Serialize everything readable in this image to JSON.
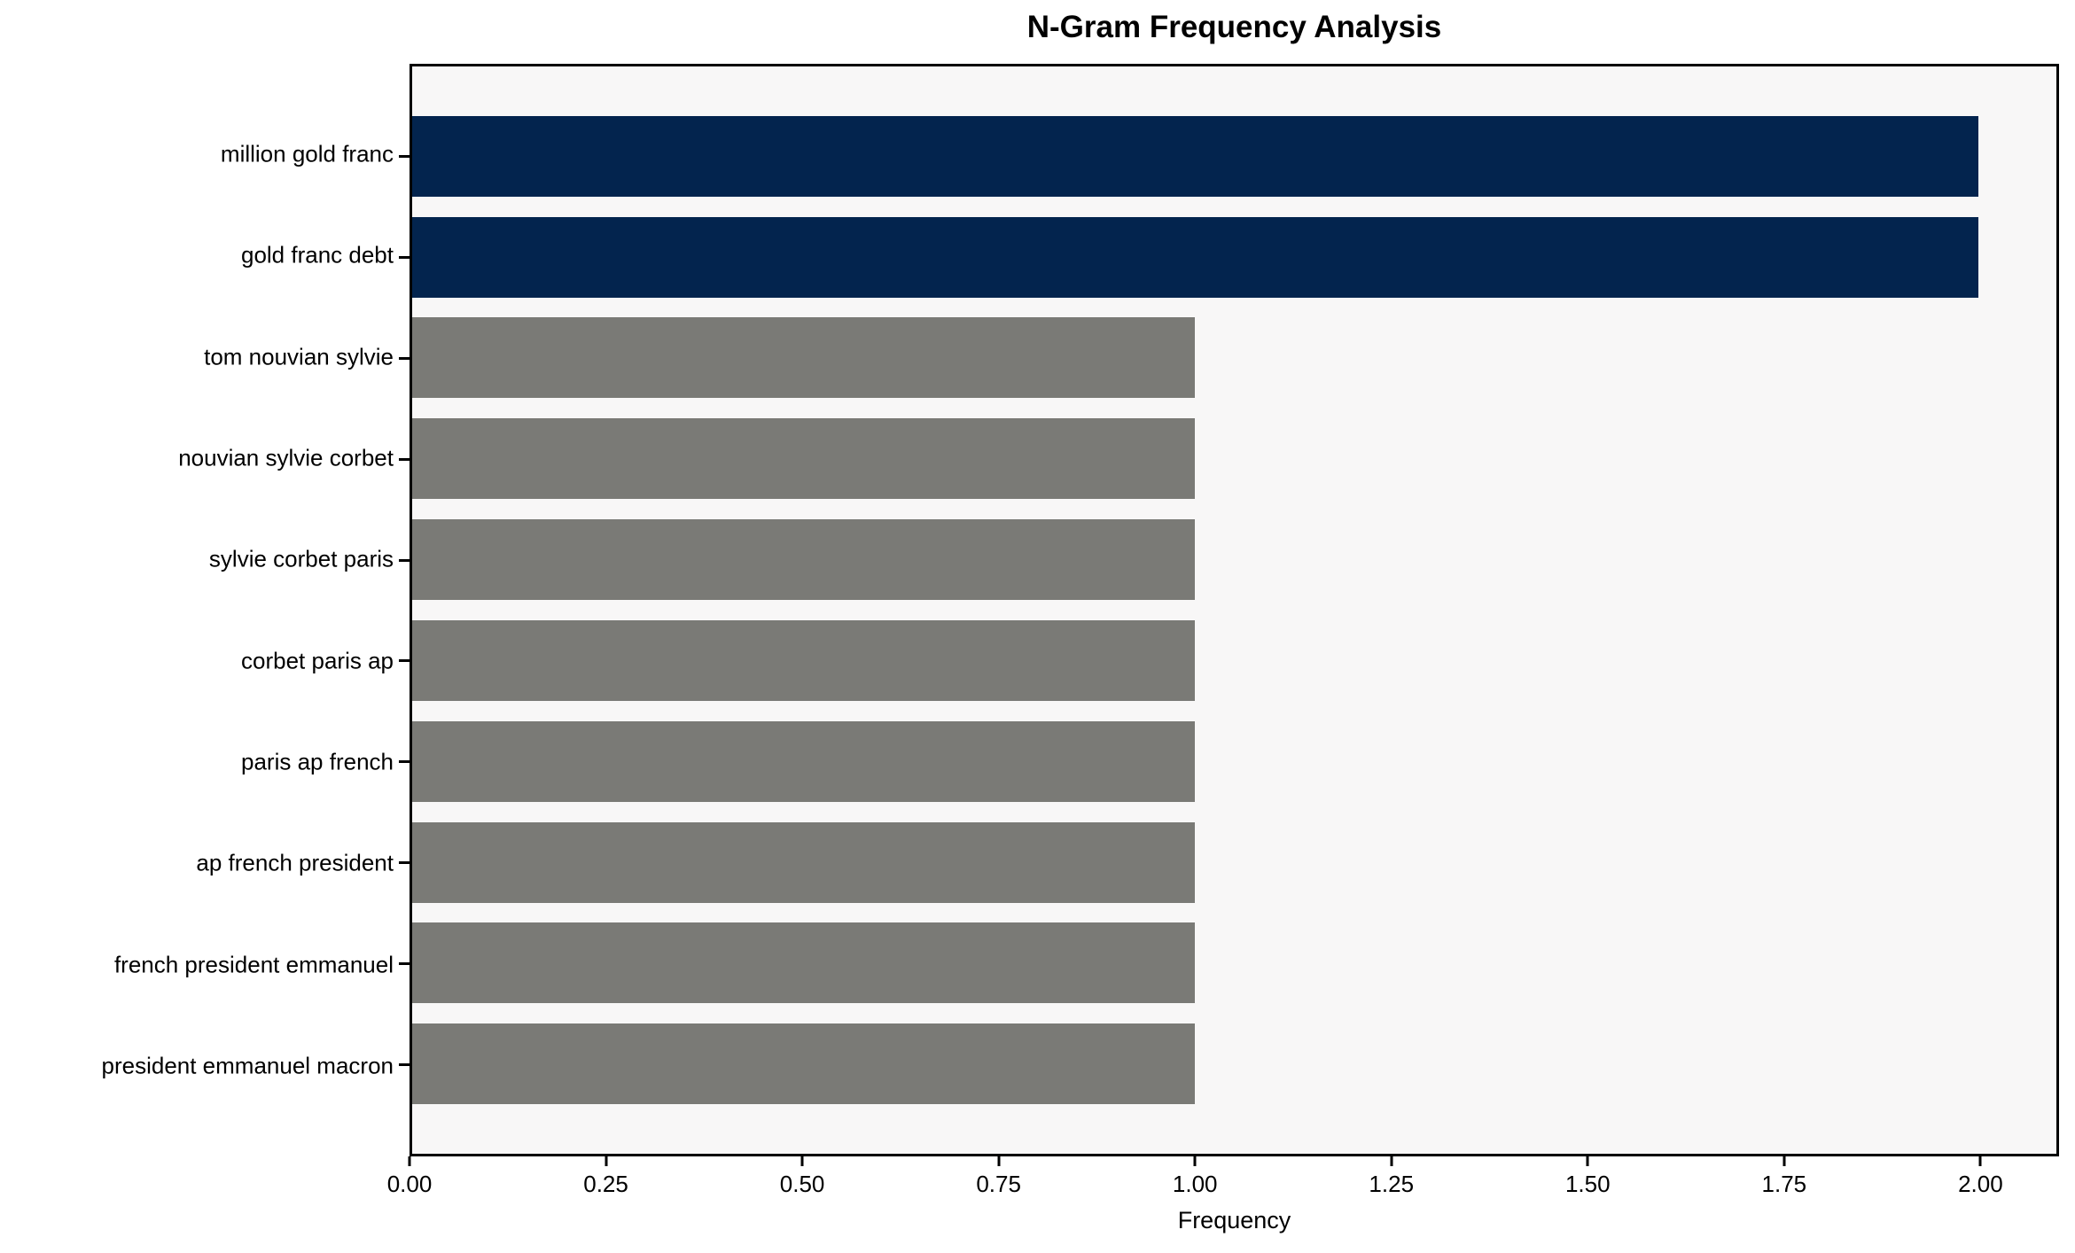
{
  "chart_data": {
    "type": "bar",
    "orientation": "horizontal",
    "title": "N-Gram Frequency Analysis",
    "xlabel": "Frequency",
    "ylabel": "",
    "categories": [
      "million gold franc",
      "gold franc debt",
      "tom nouvian sylvie",
      "nouvian sylvie corbet",
      "sylvie corbet paris",
      "corbet paris ap",
      "paris ap french",
      "ap french president",
      "french president emmanuel",
      "president emmanuel macron"
    ],
    "values": [
      2,
      2,
      1,
      1,
      1,
      1,
      1,
      1,
      1,
      1
    ],
    "bar_colors": [
      "#03244e",
      "#03244e",
      "#7a7a76",
      "#7a7a76",
      "#7a7a76",
      "#7a7a76",
      "#7a7a76",
      "#7a7a76",
      "#7a7a76",
      "#7a7a76"
    ],
    "xlim": [
      0,
      2.1
    ],
    "x_ticks": [
      0.0,
      0.25,
      0.5,
      0.75,
      1.0,
      1.25,
      1.5,
      1.75,
      2.0
    ],
    "x_tick_labels": [
      "0.00",
      "0.25",
      "0.50",
      "0.75",
      "1.00",
      "1.25",
      "1.50",
      "1.75",
      "2.00"
    ],
    "grid": false,
    "legend": null,
    "colors": {
      "highlight_bar": "#03244e",
      "default_bar": "#7a7a76",
      "plot_background": "#f8f7f7",
      "figure_background": "#ffffff",
      "spine": "#000000",
      "text": "#000000"
    }
  }
}
